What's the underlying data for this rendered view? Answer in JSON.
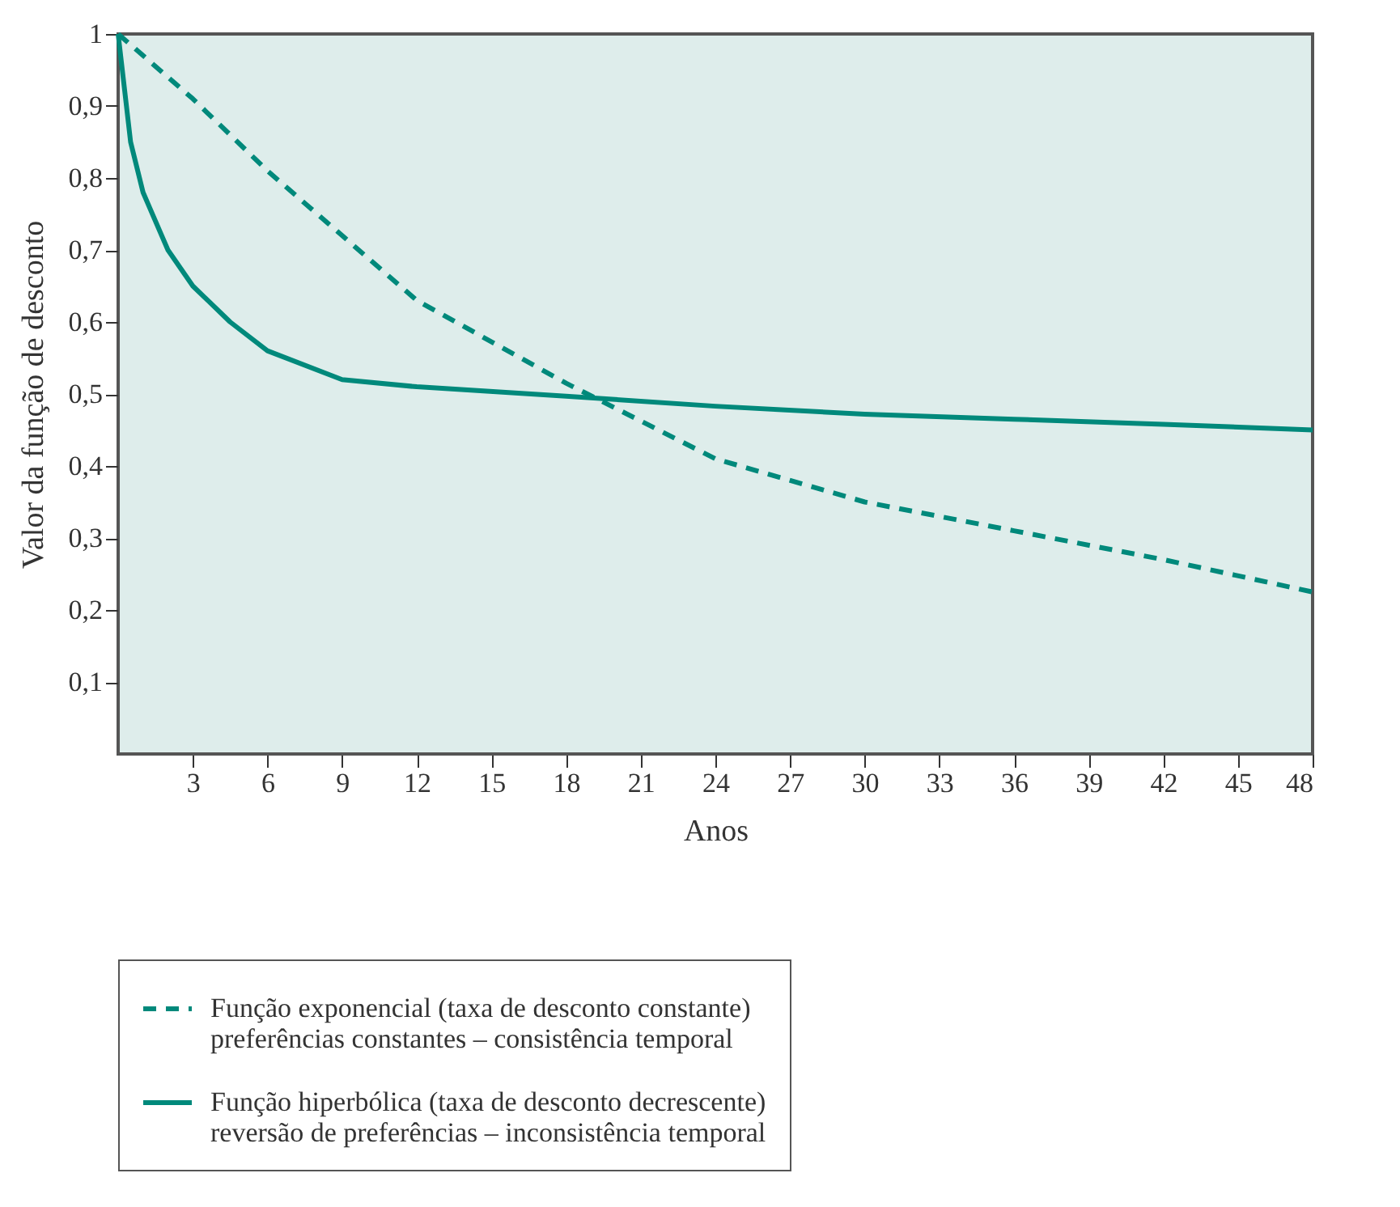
{
  "chart_data": {
    "type": "line",
    "xlabel": "Anos",
    "ylabel": "Valor da função de desconto",
    "xlim": [
      0,
      48
    ],
    "xticks": [
      3,
      6,
      9,
      12,
      15,
      18,
      21,
      24,
      27,
      30,
      33,
      36,
      39,
      42,
      45,
      48
    ],
    "ylim": [
      0,
      1
    ],
    "yticks": [
      {
        "value": 0.1,
        "label": "0,1"
      },
      {
        "value": 0.2,
        "label": "0,2"
      },
      {
        "value": 0.3,
        "label": "0,3"
      },
      {
        "value": 0.4,
        "label": "0,4"
      },
      {
        "value": 0.5,
        "label": "0,5"
      },
      {
        "value": 0.6,
        "label": "0,6"
      },
      {
        "value": 0.7,
        "label": "0,7"
      },
      {
        "value": 0.8,
        "label": "0,8"
      },
      {
        "value": 0.9,
        "label": "0,9"
      },
      1
    ],
    "grid": false,
    "legend": "bottom",
    "marker": "none",
    "series": [
      {
        "name": "Função exponencial (taxa de desconto constante)\npreferências constantes – consistência temporal",
        "color": "#00897b",
        "line_style": "dashed",
        "x": [
          0,
          3,
          6,
          12,
          18,
          24,
          30,
          36,
          42,
          48
        ],
        "values": [
          1.0,
          0.91,
          0.81,
          0.63,
          0.515,
          0.41,
          0.35,
          0.31,
          0.27,
          0.225
        ]
      },
      {
        "name": "Função hiperbólica (taxa de desconto decrescente)\nreversão de preferências – inconsistência temporal",
        "color": "#00897b",
        "line_style": "solid",
        "x": [
          0,
          0.5,
          1,
          2,
          3,
          4.5,
          6,
          9,
          12,
          18,
          24,
          30,
          36,
          42,
          48
        ],
        "values": [
          1.0,
          0.85,
          0.78,
          0.7,
          0.65,
          0.6,
          0.56,
          0.52,
          0.51,
          0.497,
          0.483,
          0.472,
          0.465,
          0.458,
          0.45
        ]
      }
    ]
  }
}
